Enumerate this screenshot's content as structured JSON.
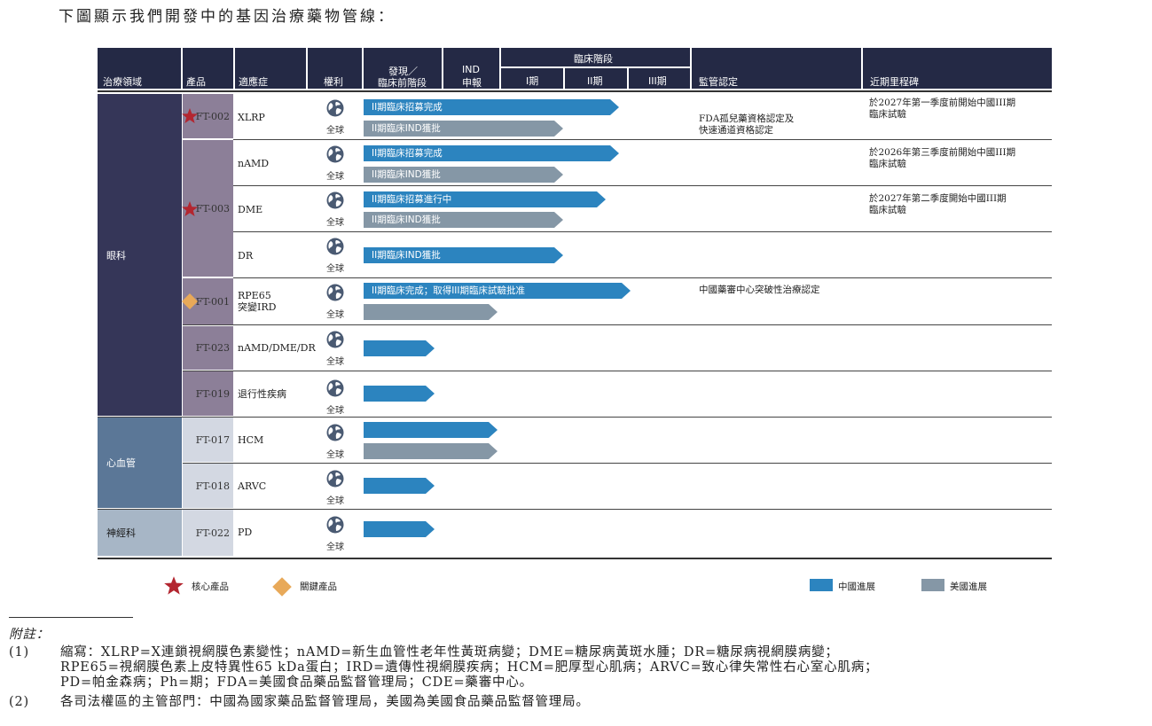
{
  "intro": "下圖顯示我們開發中的基因治療藥物管線：",
  "header": {
    "area": "治療領域",
    "product": "產品",
    "indication": "適應症",
    "rights": "權利",
    "discovery_line1": "發現／",
    "discovery_line2": "臨床前階段",
    "ind_line1": "IND",
    "ind_line2": "申報",
    "clinical": "臨床階段",
    "phase1": "I期",
    "phase2": "II期",
    "phase3": "III期",
    "regulatory": "監管認定",
    "milestones": "近期里程碑"
  },
  "areas": [
    "眼科",
    "心血管",
    "神經科"
  ],
  "products": [
    "FT-002",
    "FT-003",
    "FT-001",
    "FT-023",
    "FT-019",
    "FT-017",
    "FT-018",
    "FT-022"
  ],
  "rows": [
    {
      "indication": "XLRP",
      "rights": "全球",
      "bars": [
        {
          "text": "II期臨床招募完成"
        },
        {
          "text": "II期臨床IND獲批"
        }
      ],
      "regulatory": [
        "FDA孤兒藥資格認定及",
        "快速通道資格認定"
      ],
      "milestone": [
        "於2027年第一季度前開始中國III期",
        "臨床試驗"
      ]
    },
    {
      "indication": "nAMD",
      "rights": "全球",
      "bars": [
        {
          "text": "II期臨床招募完成"
        },
        {
          "text": "II期臨床IND獲批"
        }
      ],
      "regulatory": [],
      "milestone": [
        "於2026年第三季度前開始中國III期",
        "臨床試驗"
      ]
    },
    {
      "indication": "DME",
      "rights": "全球",
      "bars": [
        {
          "text": "II期臨床招募進行中"
        },
        {
          "text": "II期臨床IND獲批"
        }
      ],
      "regulatory": [],
      "milestone": [
        "於2027年第二季度開始中國III期",
        "臨床試驗"
      ]
    },
    {
      "indication": "DR",
      "rights": "全球",
      "bars": [
        {
          "text": "II期臨床IND獲批"
        }
      ],
      "regulatory": [],
      "milestone": []
    },
    {
      "indication": "RPE65 突變IRD",
      "indication_lines": [
        "RPE65",
        "突變IRD"
      ],
      "rights": "全球",
      "bars": [
        {
          "text": "II期臨床完成；取得III期臨床試驗批准"
        },
        {
          "text": ""
        }
      ],
      "regulatory": [
        "中國藥審中心突破性治療認定"
      ],
      "milestone": []
    },
    {
      "indication": "nAMD/DME/DR",
      "rights": "全球",
      "bars": [
        {
          "text": ""
        }
      ],
      "regulatory": [],
      "milestone": []
    },
    {
      "indication": "退行性疾病",
      "rights": "全球",
      "bars": [
        {
          "text": ""
        }
      ],
      "regulatory": [],
      "milestone": []
    },
    {
      "indication": "HCM",
      "rights": "全球",
      "bars": [
        {
          "text": ""
        },
        {
          "text": ""
        }
      ],
      "regulatory": [],
      "milestone": []
    },
    {
      "indication": "ARVC",
      "rights": "全球",
      "bars": [
        {
          "text": ""
        }
      ],
      "regulatory": [],
      "milestone": []
    },
    {
      "indication": "PD",
      "rights": "全球",
      "bars": [
        {
          "text": ""
        }
      ],
      "regulatory": [],
      "milestone": []
    }
  ],
  "legend": {
    "core": "核心產品",
    "key": "關鍵產品",
    "china": "中國進展",
    "us": "美國進展"
  },
  "colors": {
    "header": "#242945",
    "ophthalmology": "#353658",
    "cardio": "#5b7797",
    "neuro": "#a7b6c6",
    "china_bar": "#2c84bf",
    "us_bar": "#8597a6",
    "star": "#b32630",
    "diamond": "#e8a959"
  },
  "notes": {
    "title": "附註：",
    "n1_num": "(1)",
    "n1_l1": "縮寫：XLRP=X連鎖視網膜色素變性；nAMD=新生血管性老年性黃斑病變；DME=糖尿病黃斑水腫；DR=糖尿病視網膜病變；",
    "n1_l2": "RPE65=視網膜色素上皮特異性65 kDa蛋白；IRD=遺傳性視網膜疾病；HCM=肥厚型心肌病；ARVC=致心律失常性右心室心肌病；",
    "n1_l3": "PD=帕金森病；Ph=期；FDA=美國食品藥品監督管理局；CDE=藥審中心。",
    "n2_num": "(2)",
    "n2_l1": "各司法權區的主管部門：中國為國家藥品監督管理局，美國為美國食品藥品監督管理局。"
  }
}
